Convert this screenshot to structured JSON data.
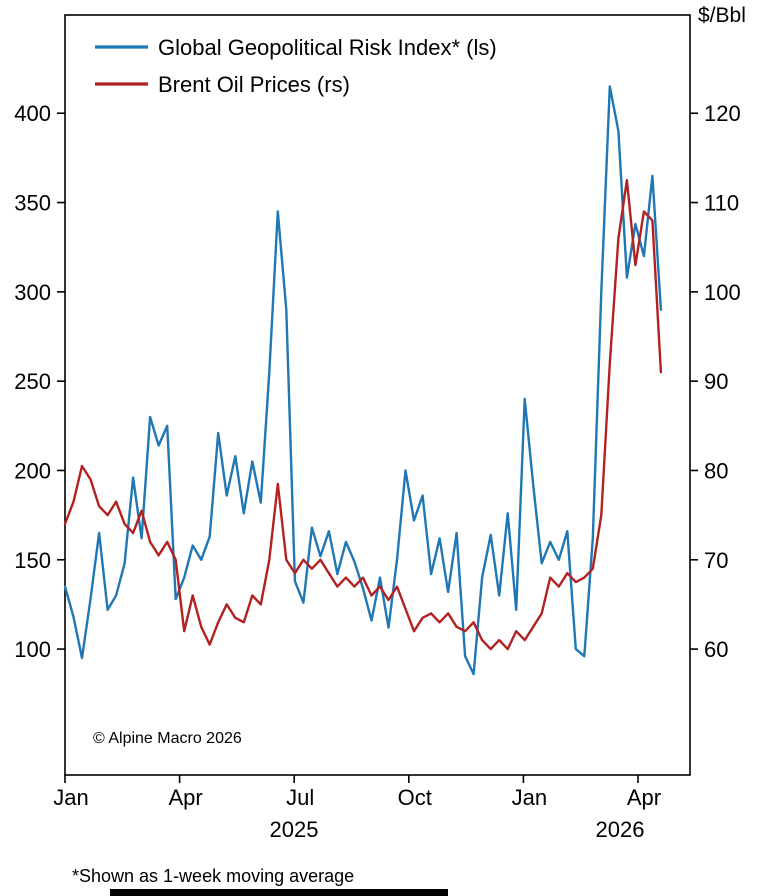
{
  "chart_data": {
    "type": "line",
    "title": "",
    "legend_position": "top-left-inside",
    "grid": false,
    "legend": [
      {
        "label": "Global Geopolitical Risk Index* (ls)",
        "color": "#1f77b4",
        "axis": "left"
      },
      {
        "label": "Brent Oil Prices (rs)",
        "color": "#b22222",
        "axis": "right"
      }
    ],
    "left_axis": {
      "ticks": [
        400,
        350,
        300,
        250,
        200,
        150,
        100
      ]
    },
    "right_axis": {
      "unit": "$/Bbl",
      "ticks": [
        120,
        110,
        100,
        90,
        80,
        70,
        60
      ]
    },
    "x_ticks": [
      {
        "label": "Jan",
        "month": 0
      },
      {
        "label": "Apr",
        "month": 3
      },
      {
        "label": "Jul",
        "month": 6
      },
      {
        "label": "Oct",
        "month": 9
      },
      {
        "label": "Jan",
        "month": 12
      },
      {
        "label": "Apr",
        "month": 15
      }
    ],
    "x_span_months": 15.6,
    "year_labels": [
      "2025",
      "2026"
    ],
    "watermark": "© Alpine Macro 2026",
    "footnote": "*Shown as 1-week moving average",
    "series": [
      {
        "name": "Global Geopolitical Risk Index* (ls)",
        "axis": "left",
        "color": "#1f77b4",
        "values": [
          135,
          118,
          95,
          128,
          165,
          122,
          130,
          148,
          196,
          162,
          230,
          214,
          225,
          128,
          140,
          158,
          150,
          163,
          221,
          186,
          208,
          176,
          205,
          182,
          255,
          345,
          290,
          138,
          126,
          168,
          152,
          166,
          142,
          160,
          149,
          134,
          116,
          140,
          112,
          150,
          200,
          172,
          186,
          142,
          162,
          132,
          165,
          96,
          86,
          140,
          164,
          130,
          176,
          122,
          240,
          192,
          148,
          160,
          150,
          166,
          100,
          96,
          162,
          300,
          415,
          390,
          308,
          338,
          320,
          365,
          290
        ]
      },
      {
        "name": "Brent Oil Prices (rs)",
        "axis": "right",
        "color": "#b22222",
        "values": [
          74,
          76.5,
          80.5,
          79,
          76,
          75,
          76.5,
          74,
          73,
          75.5,
          72,
          70.5,
          72,
          70,
          62,
          66,
          62.5,
          60.5,
          63,
          65,
          63.5,
          63,
          66,
          65,
          70,
          78.5,
          70,
          68.5,
          70,
          69,
          70,
          68.5,
          67,
          68,
          67,
          68,
          66,
          67,
          65.5,
          67,
          64.5,
          62,
          63.5,
          64,
          63,
          64,
          62.5,
          62,
          63,
          61,
          60,
          61,
          60,
          62,
          61,
          62.5,
          64,
          68,
          67,
          68.5,
          67.5,
          68,
          69,
          75,
          92,
          106,
          112.5,
          103,
          109,
          108,
          91
        ]
      }
    ]
  }
}
